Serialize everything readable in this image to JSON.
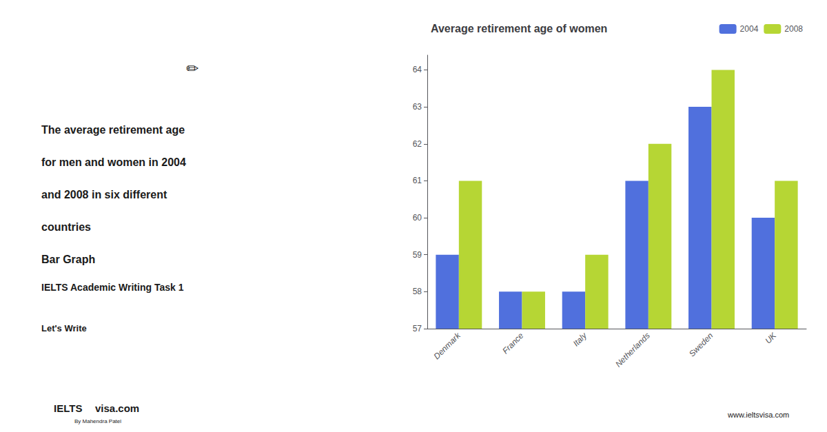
{
  "chart_data": {
    "type": "bar",
    "title": "Average retirement age of women",
    "categories": [
      "Denmark",
      "France",
      "Italy",
      "Netherlands",
      "Sweden",
      "UK"
    ],
    "series": [
      {
        "name": "2004",
        "values": [
          59,
          58,
          58,
          61,
          63,
          60
        ]
      },
      {
        "name": "2008",
        "values": [
          61,
          58,
          59,
          62,
          64,
          61
        ]
      }
    ],
    "ylim": [
      57,
      64.4
    ],
    "yticks": [
      57,
      58,
      59,
      60,
      61,
      62,
      63,
      64
    ],
    "grid": false,
    "legend": "upper right",
    "annotations": [
      "The average retirement age",
      "for men and women in 2004",
      "and 2008 in six different",
      "countries",
      "Bar Graph",
      "IELTS Academic Writing Task 1",
      "Let's Write",
      "✏",
      "IELTS",
      "visa.com",
      "By Mahendra Patel",
      "www.ieltsvisa.com"
    ]
  }
}
